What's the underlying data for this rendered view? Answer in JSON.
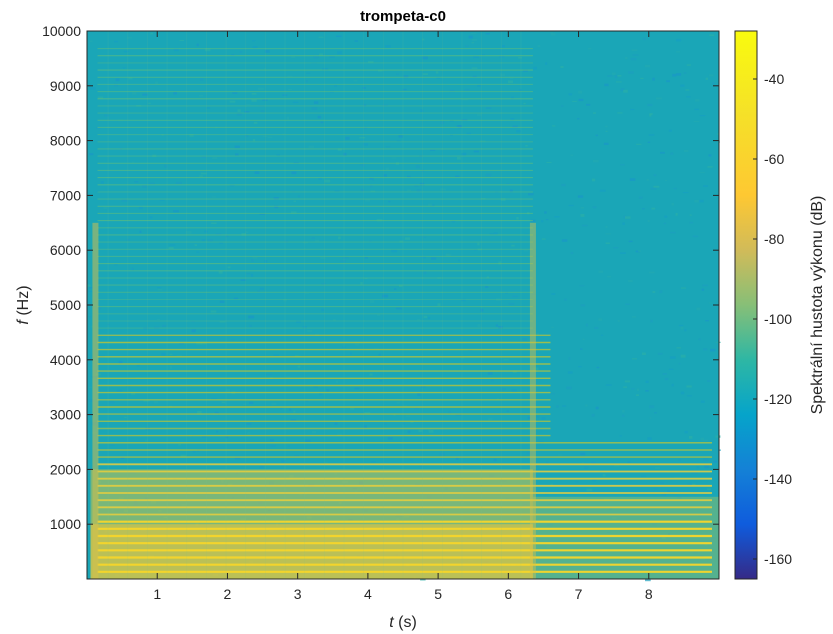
{
  "chart_data": {
    "type": "heatmap",
    "title": "trompeta-c0",
    "xlabel_var": "t",
    "xlabel_unit": "(s)",
    "ylabel_var": "f",
    "ylabel_unit": "(Hz)",
    "xlim": [
      0,
      9
    ],
    "ylim": [
      0,
      10000
    ],
    "x_ticks": [
      "1",
      "2",
      "3",
      "4",
      "5",
      "6",
      "7",
      "8"
    ],
    "x_tick_values": [
      1,
      2,
      3,
      4,
      5,
      6,
      7,
      8
    ],
    "y_ticks": [
      "1000",
      "2000",
      "3000",
      "4000",
      "5000",
      "6000",
      "7000",
      "8000",
      "9000",
      "10000"
    ],
    "y_tick_values": [
      1000,
      2000,
      3000,
      4000,
      5000,
      6000,
      7000,
      8000,
      9000,
      10000
    ],
    "colorbar": {
      "label": "Spektrální hustota výkonu (dB)",
      "ticks": [
        "-40",
        "-60",
        "-80",
        "-100",
        "-120",
        "-140",
        "-160"
      ],
      "tick_values": [
        -40,
        -60,
        -80,
        -100,
        -120,
        -140,
        -160
      ],
      "range": [
        -165,
        -28
      ],
      "colormap": "parula"
    },
    "fundamental_hz": 130.8,
    "note_end_s": 6.35,
    "harmonics_visible_max_hz": 9800,
    "colors": {
      "background_noise": "#1aa6b7",
      "harmonic_low": "#f7d62a",
      "harmonic_mid": "#b6c43a",
      "harmonic_high": "#5fbf7a"
    }
  }
}
